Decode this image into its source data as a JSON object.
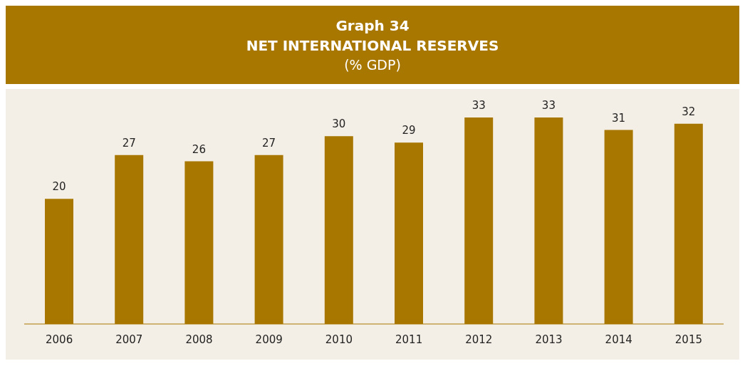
{
  "chart_data": {
    "type": "bar",
    "title": "Graph 34\nNET INTERNATIONAL RESERVES",
    "subtitle": "(% GDP)",
    "categories": [
      "2006",
      "2007",
      "2008",
      "2009",
      "2010",
      "2011",
      "2012",
      "2013",
      "2014",
      "2015"
    ],
    "values": [
      20,
      27,
      26,
      27,
      30,
      29,
      33,
      33,
      31,
      32
    ],
    "color": "#a87700",
    "data_labels": true
  }
}
